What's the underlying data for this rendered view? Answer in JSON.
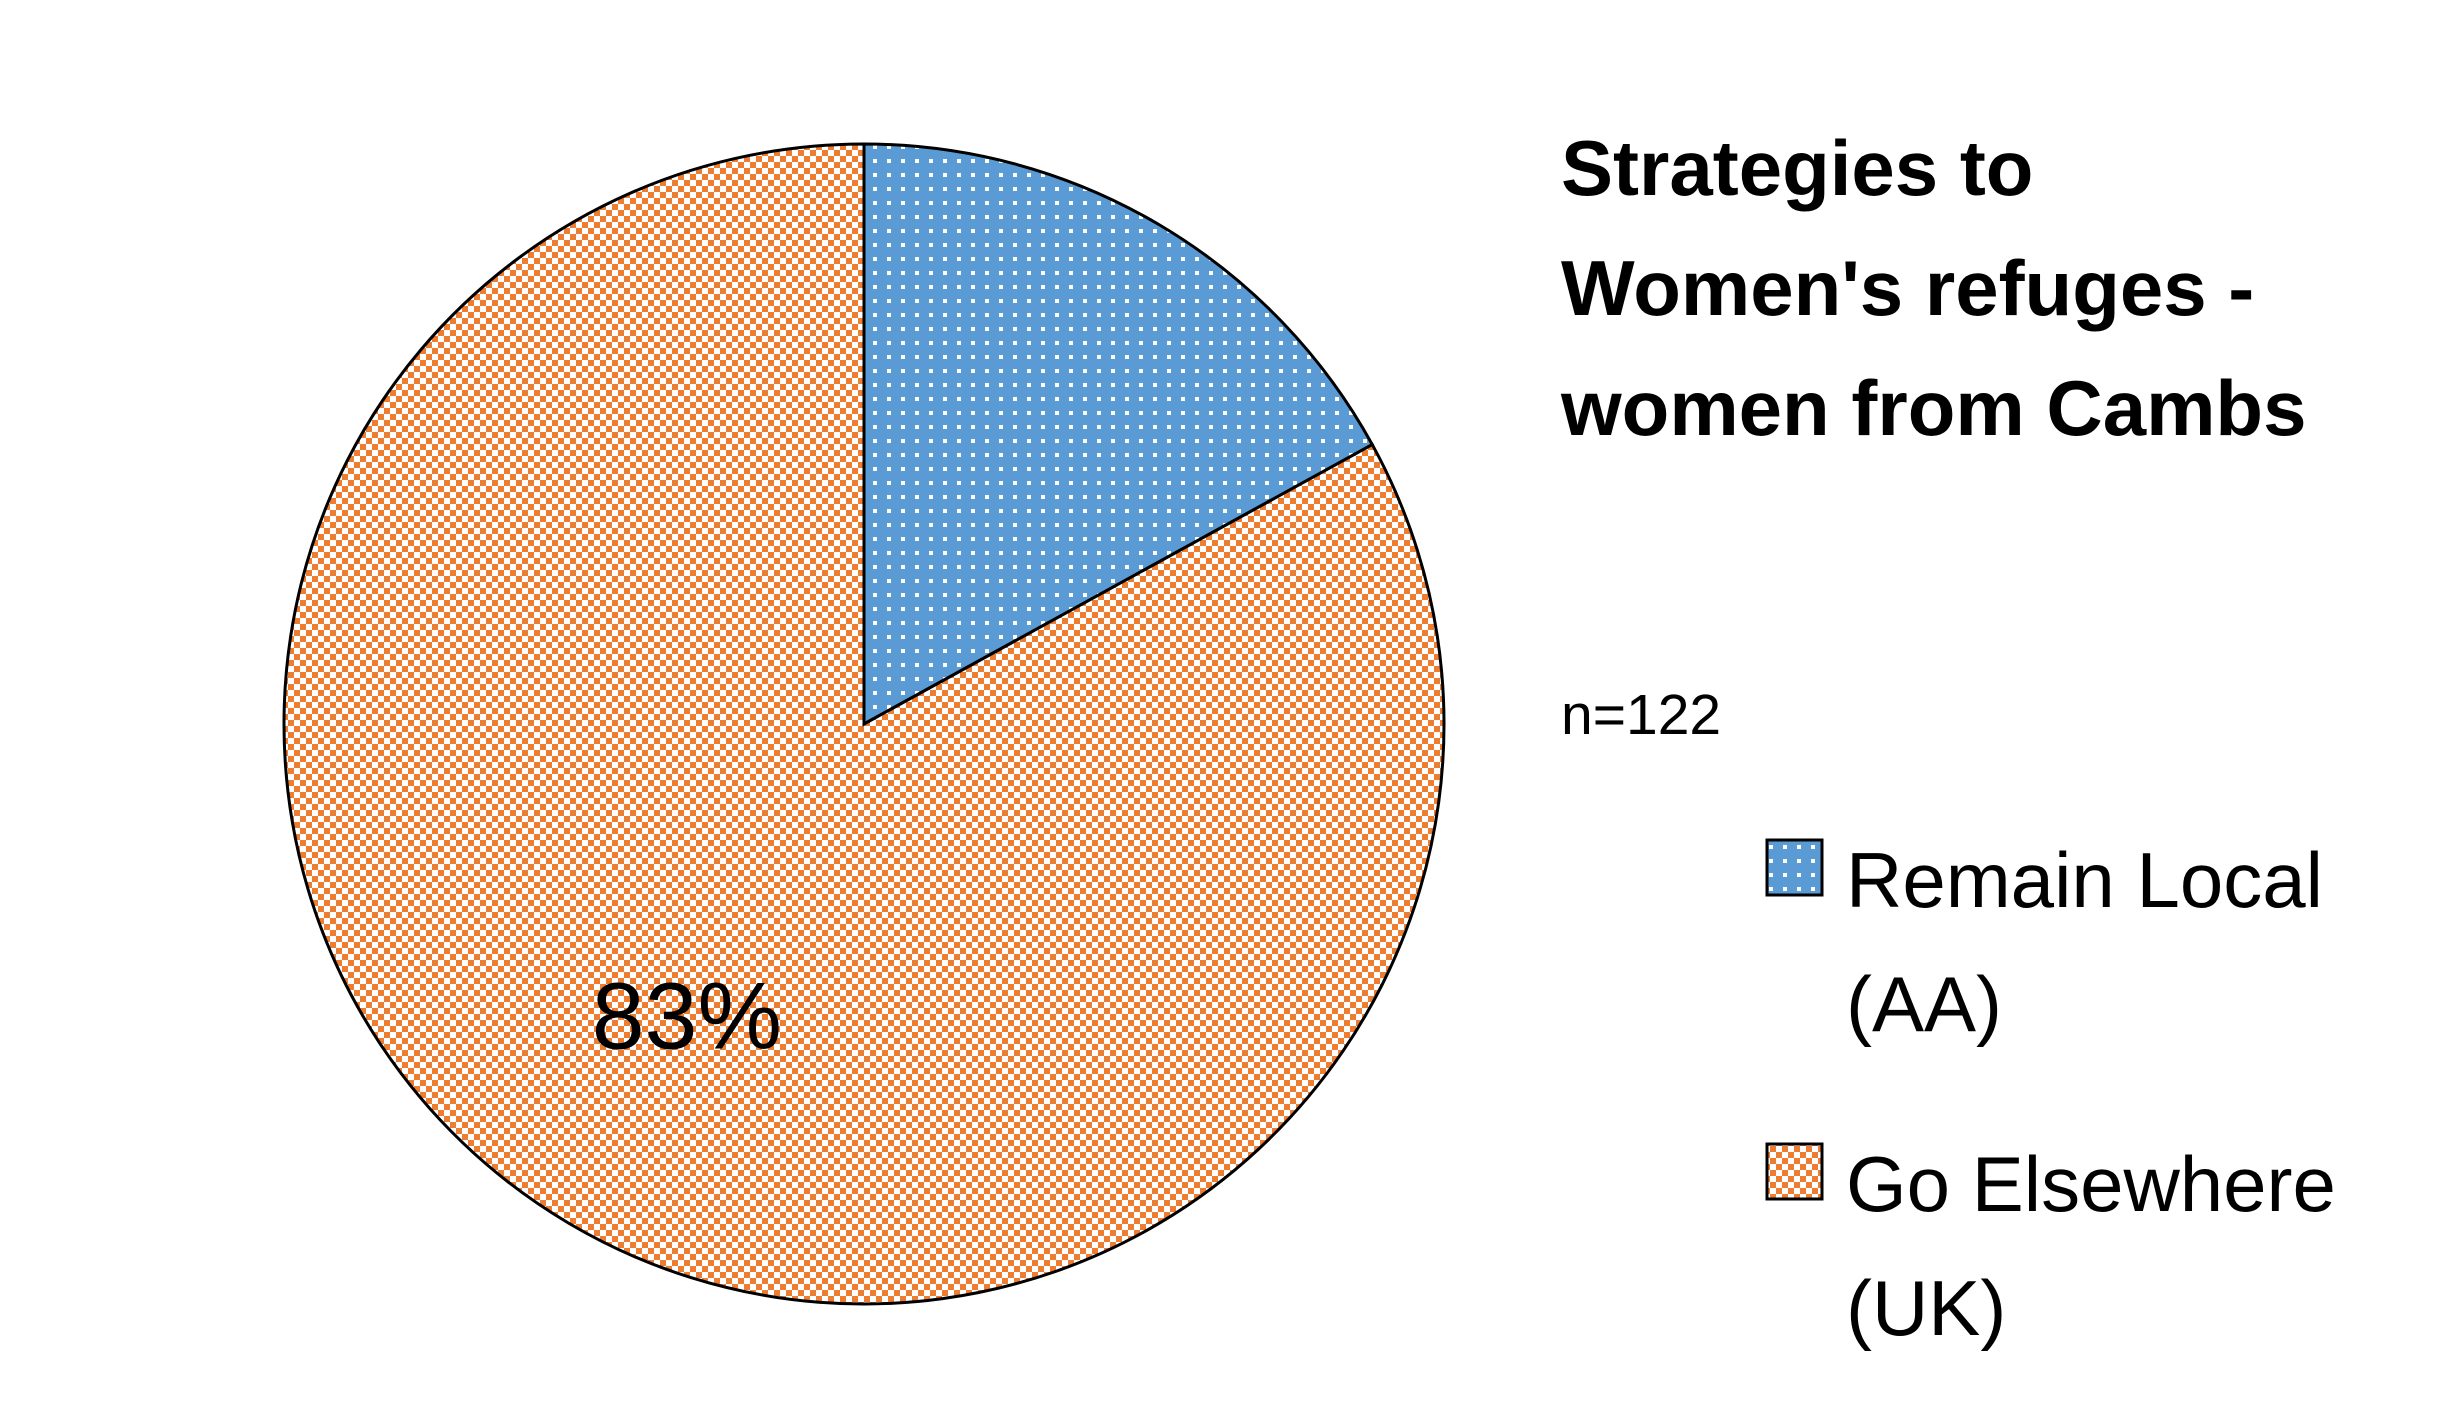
{
  "chart_data": {
    "type": "pie",
    "title": "Strategies to Women's refuges - women from Cambs",
    "annotation": "n=122",
    "categories": [
      "Remain Local (AA)",
      "Go Elsewhere (UK)"
    ],
    "values": [
      17,
      83
    ],
    "value_labels": [
      null,
      "83%"
    ],
    "colors": [
      "#5b9bd5",
      "#ed7d31"
    ],
    "legend": "right"
  }
}
